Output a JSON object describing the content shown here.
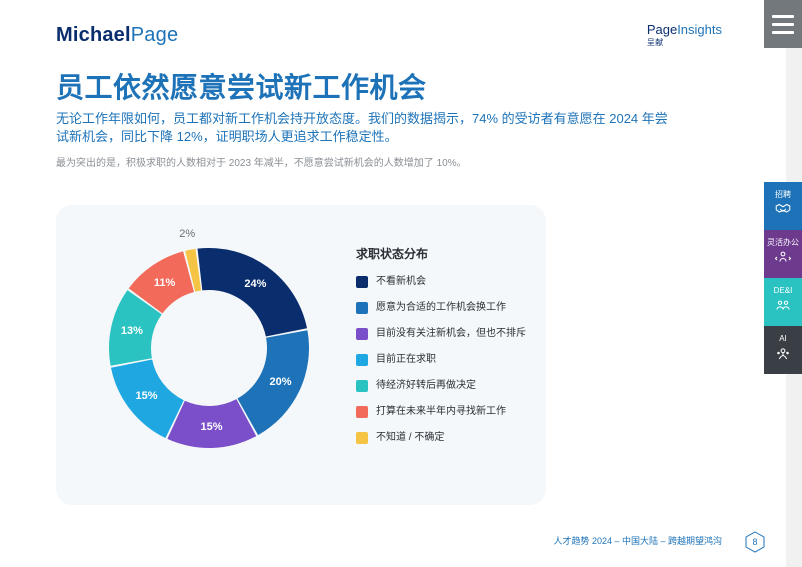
{
  "header": {
    "logo_first": "Michael",
    "logo_second": "Page",
    "brand_a": "Page",
    "brand_b": "Insights",
    "brand_sub": "呈献"
  },
  "title": "员工依然愿意尝试新工作机会",
  "subtitle": "无论工作年限如何，员工都对新工作机会持开放态度。我们的数据揭示，74% 的受访者有意愿在 2024 年尝试新机会，同比下降 12%，证明职场人更追求工作稳定性。",
  "note": "最为突出的是，积极求职的人数相对于 2023 年减半，不愿意尝试新机会的人数增加了 10%。",
  "chart": {
    "type": "donut",
    "legend_title": "求职状态分布",
    "background_color": "#f5f8fa",
    "inner_radius": 58,
    "outer_radius": 100,
    "slices": [
      {
        "label": "不看新机会",
        "value": 24,
        "color": "#0a2d6e",
        "text_color": "#ffffff",
        "pct": "24%"
      },
      {
        "label": "愿意为合适的工作机会换工作",
        "value": 20,
        "color": "#1e73b8",
        "text_color": "#ffffff",
        "pct": "20%"
      },
      {
        "label": "目前没有关注新机会，但也不排斥",
        "value": 15,
        "color": "#7a4fc9",
        "text_color": "#ffffff",
        "pct": "15%"
      },
      {
        "label": "目前正在求职",
        "value": 15,
        "color": "#1ea7e0",
        "text_color": "#ffffff",
        "pct": "15%"
      },
      {
        "label": "待经济好转后再做决定",
        "value": 13,
        "color": "#2bc2c2",
        "text_color": "#ffffff",
        "pct": "13%"
      },
      {
        "label": "打算在未来半年内寻找新工作",
        "value": 11,
        "color": "#f26a5a",
        "text_color": "#ffffff",
        "pct": "11%"
      },
      {
        "label": "不知道 / 不确定",
        "value": 2,
        "color": "#f6c445",
        "text_color": "#6a6e73",
        "pct": "2%",
        "outside": true
      }
    ]
  },
  "side_tabs": [
    {
      "label": "招聘",
      "color": "#1e73b8",
      "icon": "handshake-icon"
    },
    {
      "label": "灵活办公",
      "color": "#6d3a8e",
      "icon": "person-arrows-icon"
    },
    {
      "label": "DE&I",
      "color": "#2bc2c2",
      "icon": "people-icon"
    },
    {
      "label": "AI",
      "color": "#3a3f45",
      "icon": "ai-icon"
    }
  ],
  "footer": {
    "text": "人才趋势 2024 – 中国大陆 – 跨越期望鸿沟",
    "page": "8"
  },
  "colors": {
    "brand_dark": "#0a2d6e",
    "brand_blue": "#1e73b8",
    "muted": "#8a8f95",
    "hex_stroke": "#1e73b8"
  }
}
